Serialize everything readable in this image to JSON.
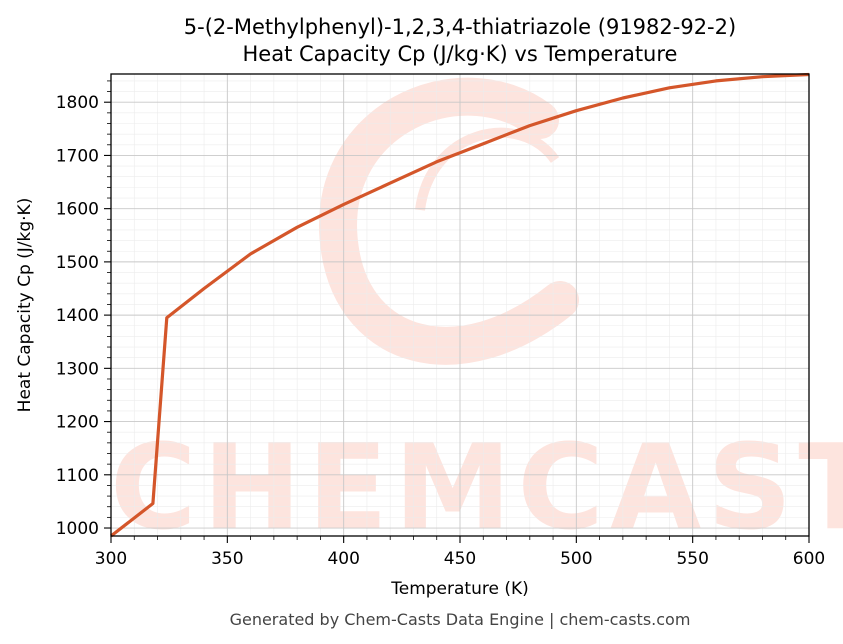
{
  "chart_data": {
    "type": "line",
    "title": "5-(2-Methylphenyl)-1,2,3,4-thiatriazole (91982-92-2)",
    "subtitle": "Heat Capacity Cp (J/kg·K) vs Temperature",
    "xlabel": "Temperature (K)",
    "ylabel": "Heat Capacity Cp (J/kg·K)",
    "xlim": [
      300,
      600
    ],
    "ylim": [
      985,
      1853
    ],
    "xticks": [
      300,
      350,
      400,
      450,
      500,
      550,
      600
    ],
    "yticks": [
      1000,
      1100,
      1200,
      1300,
      1400,
      1500,
      1600,
      1700,
      1800
    ],
    "grid": true,
    "line_color": "#d4562a",
    "series": [
      {
        "x": [
          300,
          318,
          324,
          340,
          360,
          380,
          400,
          420,
          440,
          460,
          480,
          500,
          520,
          540,
          560,
          580,
          600
        ],
        "y": [
          985,
          1046,
          1395,
          1450,
          1515,
          1565,
          1608,
          1648,
          1688,
          1722,
          1756,
          1784,
          1808,
          1827,
          1840,
          1848,
          1852
        ]
      }
    ]
  },
  "watermark": {
    "text": "CHEMCASTS",
    "color": "#fde4de"
  },
  "footer": {
    "text": "Generated by Chem-Casts Data Engine | chem-casts.com"
  }
}
